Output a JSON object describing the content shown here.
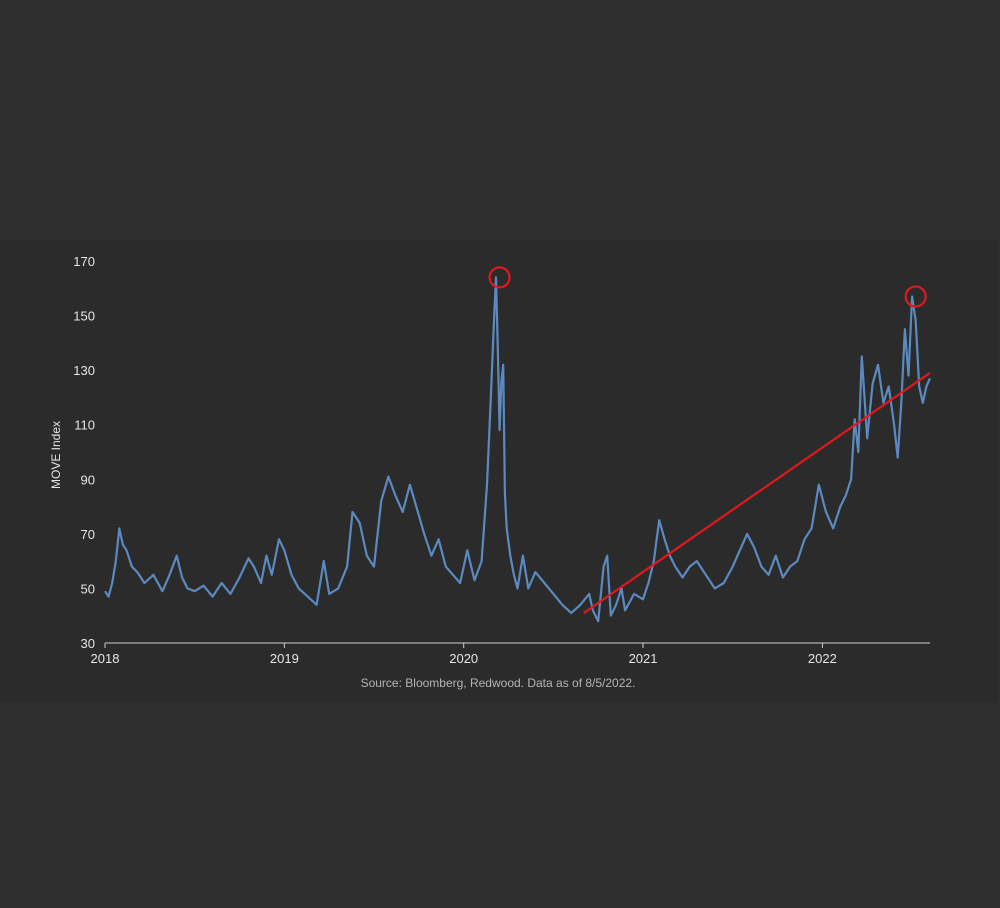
{
  "chart_data": {
    "type": "line",
    "title": "",
    "xlabel": "",
    "ylabel": "MOVE Index",
    "source": "Source: Bloomberg, Redwood. Data as of 8/5/2022.",
    "xlim": [
      2018.0,
      2022.6
    ],
    "ylim": [
      30,
      170
    ],
    "y_ticks": [
      "30",
      "50",
      "70",
      "90",
      "110",
      "130",
      "150",
      "170"
    ],
    "x_ticks": [
      "2018",
      "2019",
      "2020",
      "2021",
      "2022"
    ],
    "grid": false,
    "colors": {
      "series": "#5b8ac0",
      "trend": "#e0191e",
      "highlight": "#e0191e",
      "background": "#2f2f2f",
      "axis": "#d0d0d0"
    },
    "series": [
      {
        "x": [
          2018.0,
          2018.02,
          2018.04,
          2018.06,
          2018.08,
          2018.1,
          2018.12,
          2018.15,
          2018.18,
          2018.22,
          2018.27,
          2018.32,
          2018.36,
          2018.4,
          2018.43,
          2018.46,
          2018.5,
          2018.55,
          2018.6,
          2018.65,
          2018.7,
          2018.75,
          2018.8,
          2018.83,
          2018.87,
          2018.9,
          2018.93,
          2018.97,
          2019.0,
          2019.04,
          2019.08,
          2019.13,
          2019.18,
          2019.22,
          2019.25,
          2019.3,
          2019.35,
          2019.38,
          2019.42,
          2019.46,
          2019.5,
          2019.54,
          2019.58,
          2019.62,
          2019.66,
          2019.7,
          2019.74,
          2019.78,
          2019.82,
          2019.86,
          2019.9,
          2019.94,
          2019.98,
          2020.02,
          2020.06,
          2020.1,
          2020.13,
          2020.15,
          2020.17,
          2020.18,
          2020.19,
          2020.2,
          2020.21,
          2020.22,
          2020.23,
          2020.24,
          2020.26,
          2020.28,
          2020.3,
          2020.33,
          2020.36,
          2020.4,
          2020.45,
          2020.5,
          2020.55,
          2020.6,
          2020.65,
          2020.7,
          2020.72,
          2020.75,
          2020.78,
          2020.8,
          2020.82,
          2020.85,
          2020.88,
          2020.9,
          2020.95,
          2021.0,
          2021.03,
          2021.06,
          2021.09,
          2021.12,
          2021.15,
          2021.18,
          2021.22,
          2021.26,
          2021.3,
          2021.35,
          2021.4,
          2021.45,
          2021.5,
          2021.54,
          2021.58,
          2021.62,
          2021.66,
          2021.7,
          2021.74,
          2021.78,
          2021.82,
          2021.86,
          2021.9,
          2021.94,
          2021.98,
          2022.02,
          2022.06,
          2022.1,
          2022.13,
          2022.16,
          2022.18,
          2022.2,
          2022.22,
          2022.25,
          2022.28,
          2022.31,
          2022.34,
          2022.37,
          2022.4,
          2022.42,
          2022.44,
          2022.46,
          2022.48,
          2022.5,
          2022.52,
          2022.54,
          2022.56,
          2022.58,
          2022.6
        ],
        "values": [
          49,
          47,
          52,
          60,
          72,
          66,
          64,
          58,
          56,
          52,
          55,
          49,
          55,
          62,
          54,
          50,
          49,
          51,
          47,
          52,
          48,
          54,
          61,
          58,
          52,
          62,
          55,
          68,
          64,
          55,
          50,
          47,
          44,
          60,
          48,
          50,
          58,
          78,
          74,
          62,
          58,
          82,
          91,
          84,
          78,
          88,
          79,
          70,
          62,
          68,
          58,
          55,
          52,
          64,
          53,
          60,
          88,
          118,
          150,
          164,
          138,
          108,
          126,
          132,
          85,
          72,
          62,
          55,
          50,
          62,
          50,
          56,
          52,
          48,
          44,
          41,
          44,
          48,
          42,
          38,
          58,
          62,
          40,
          44,
          50,
          42,
          48,
          46,
          52,
          60,
          75,
          68,
          62,
          58,
          54,
          58,
          60,
          55,
          50,
          52,
          58,
          64,
          70,
          65,
          58,
          55,
          62,
          54,
          58,
          60,
          68,
          72,
          88,
          78,
          72,
          80,
          84,
          90,
          112,
          100,
          135,
          105,
          125,
          132,
          118,
          124,
          110,
          98,
          118,
          145,
          128,
          157,
          148,
          124,
          118,
          124,
          127
        ]
      }
    ],
    "trendline": {
      "x": [
        2020.67,
        2022.6
      ],
      "values": [
        41,
        129
      ]
    },
    "highlights": [
      {
        "x": 2020.2,
        "value": 164
      },
      {
        "x": 2022.52,
        "value": 157
      }
    ]
  }
}
